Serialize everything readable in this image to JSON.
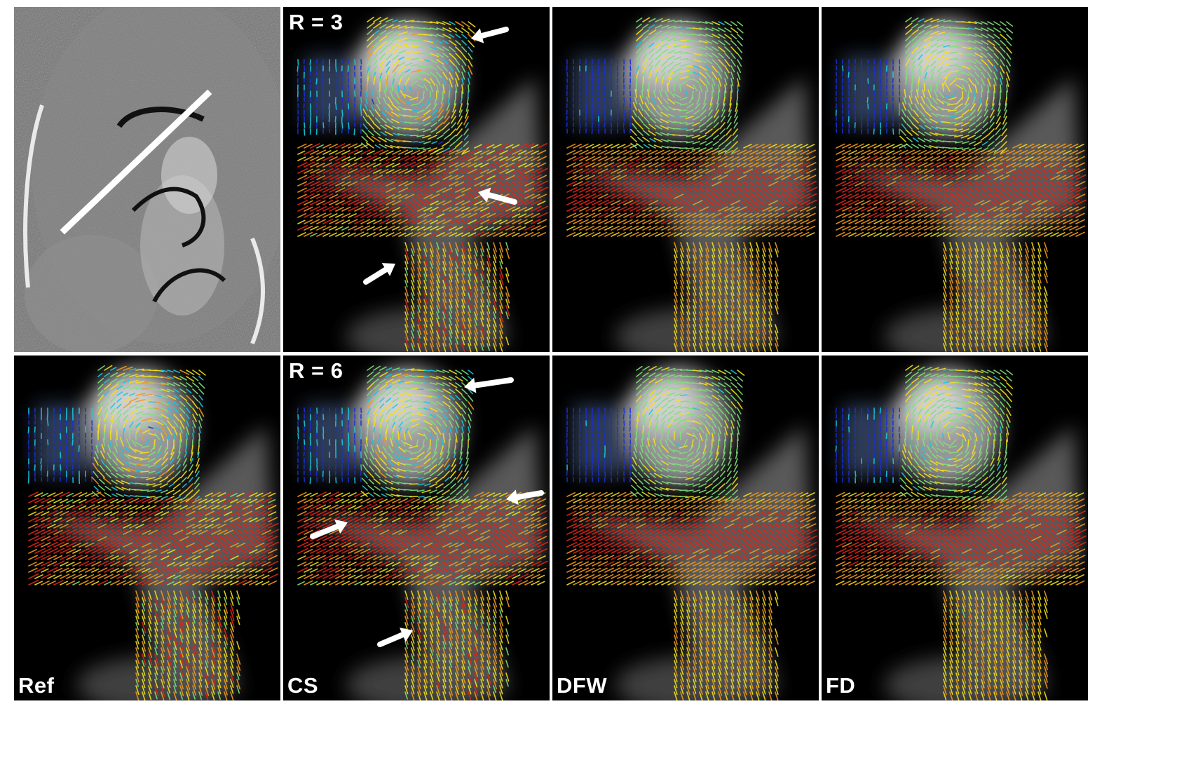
{
  "figure": {
    "panels": [
      {
        "id": "mag",
        "kind": "magnitude",
        "label": ""
      },
      {
        "id": "r3-cs",
        "kind": "flow",
        "variant": "cs",
        "label": "R = 3",
        "arrows": "r3cs"
      },
      {
        "id": "r3-dfw",
        "kind": "flow",
        "variant": "dfw",
        "label": "",
        "arrows": ""
      },
      {
        "id": "r3-fd",
        "kind": "flow",
        "variant": "fd",
        "label": "",
        "arrows": ""
      },
      {
        "id": "ref",
        "kind": "flow",
        "variant": "ref",
        "label": "Ref",
        "arrows": ""
      },
      {
        "id": "r6-cs",
        "kind": "flow",
        "variant": "cs",
        "label": "R = 6",
        "label_bottom": "CS",
        "arrows": "r6cs"
      },
      {
        "id": "r6-dfw",
        "kind": "flow",
        "variant": "dfw",
        "label": "DFW",
        "arrows": ""
      },
      {
        "id": "r6-fd",
        "kind": "flow",
        "variant": "fd",
        "label": "FD",
        "arrows": ""
      }
    ],
    "colormap": [
      "#1a2fd6",
      "#19c8e0",
      "#7fe07a",
      "#f2e21a",
      "#f29a1a",
      "#e0261a"
    ],
    "arrow_color": "#ffffff"
  }
}
